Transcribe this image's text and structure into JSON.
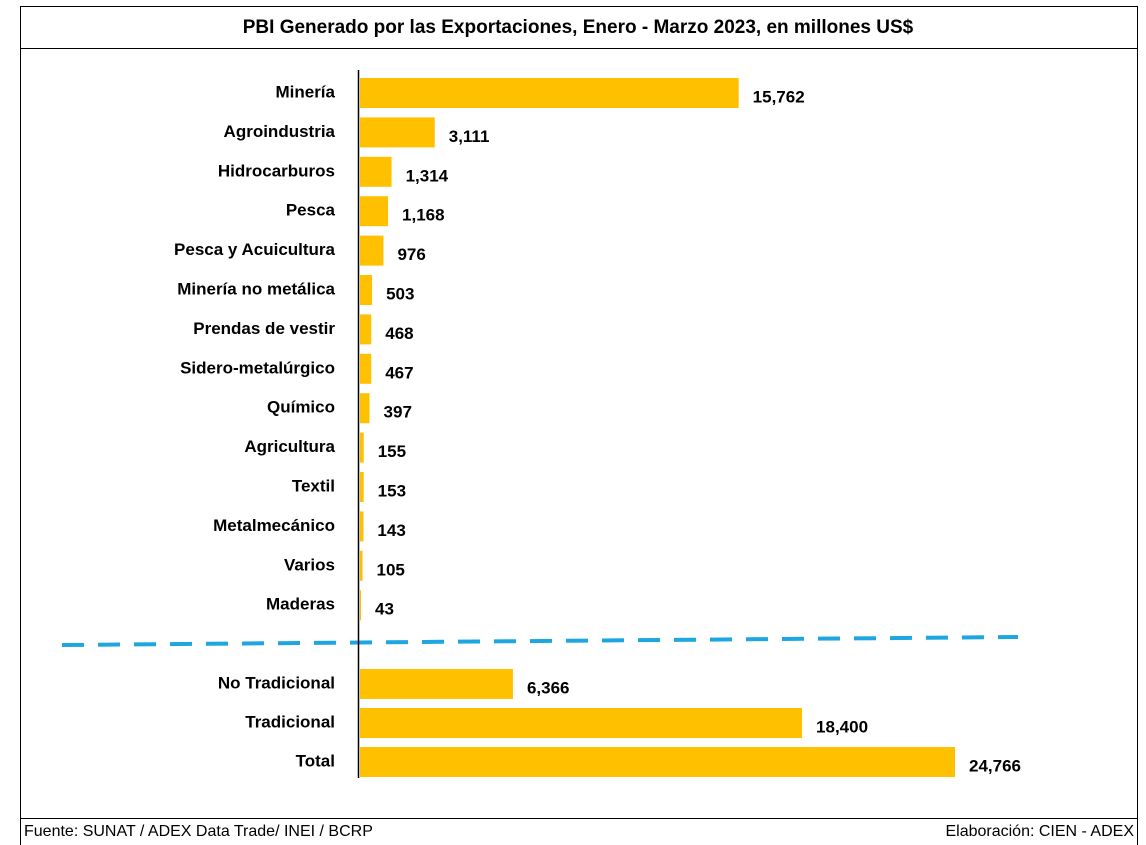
{
  "chart_data": {
    "type": "bar",
    "title": "PBI Generado por las Exportaciones, Enero - Marzo 2023, en millones US$",
    "source": "Fuente: SUNAT / ADEX Data Trade/ INEI / BCRP",
    "credit": "Elaboración: CIEN - ADEX",
    "color": "#ffc000",
    "groups": [
      {
        "categories": [
          "Minería",
          "Agroindustria",
          "Hidrocarburos",
          "Pesca",
          "Pesca y Acuicultura",
          "Minería no metálica",
          "Prendas de vestir",
          "Sidero-metalúrgico",
          "Químico",
          "Agricultura",
          "Textil",
          "Metalmecánico",
          "Varios",
          "Maderas"
        ],
        "values": [
          15762,
          3111,
          1314,
          1168,
          976,
          503,
          468,
          467,
          397,
          155,
          153,
          143,
          105,
          43
        ],
        "value_labels": [
          "15,762",
          "3,111",
          "1,314",
          "1,168",
          "976",
          "503",
          "468",
          "467",
          "397",
          "155",
          "153",
          "143",
          "105",
          "43"
        ]
      },
      {
        "categories": [
          "No Tradicional",
          "Tradicional",
          "Total"
        ],
        "values": [
          6366,
          18400,
          24766
        ],
        "value_labels": [
          "6,366",
          "18,400",
          "24,766"
        ]
      }
    ]
  }
}
